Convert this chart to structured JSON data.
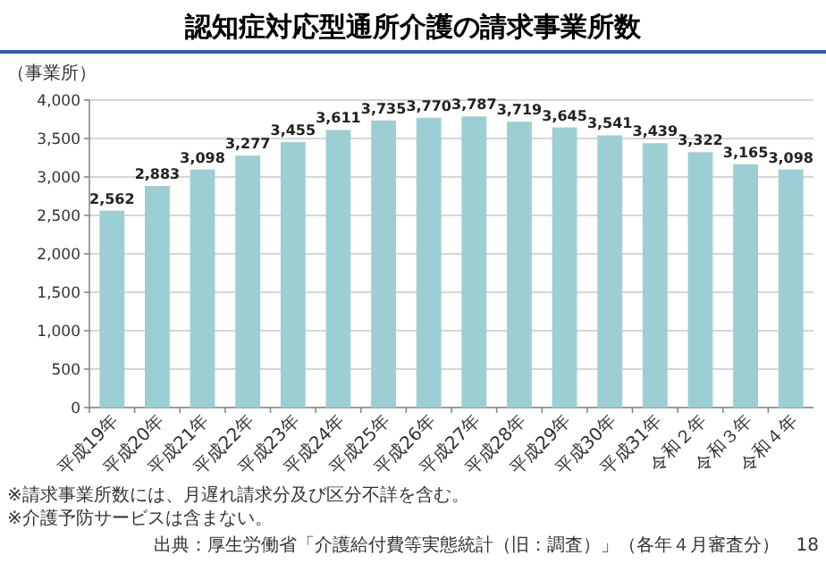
{
  "chart_data": {
    "type": "bar",
    "title": "認知症対応型通所介護の請求事業所数",
    "ylabel": "（事業所）",
    "categories": [
      "平成19年",
      "平成20年",
      "平成21年",
      "平成22年",
      "平成23年",
      "平成24年",
      "平成25年",
      "平成26年",
      "平成27年",
      "平成28年",
      "平成29年",
      "平成30年",
      "平成31年",
      "令和２年",
      "令和３年",
      "令和４年"
    ],
    "values": [
      2562,
      2883,
      3098,
      3277,
      3455,
      3611,
      3735,
      3770,
      3787,
      3719,
      3645,
      3541,
      3439,
      3322,
      3165,
      3098
    ],
    "value_labels": [
      "2,562",
      "2,883",
      "3,098",
      "3,277",
      "3,455",
      "3,611",
      "3,735",
      "3,770",
      "3,787",
      "3,719",
      "3,645",
      "3,541",
      "3,439",
      "3,322",
      "3,165",
      "3,098"
    ],
    "color": "#9bcfd4",
    "ylim": [
      0,
      4000
    ],
    "yticks": [
      {
        "value": 0,
        "label": "0"
      },
      {
        "value": 500,
        "label": "500"
      },
      {
        "value": 1000,
        "label": "1,000"
      },
      {
        "value": 1500,
        "label": "1,500"
      },
      {
        "value": 2000,
        "label": "2,000"
      },
      {
        "value": 2500,
        "label": "2,500"
      },
      {
        "value": 3000,
        "label": "3,000"
      },
      {
        "value": 3500,
        "label": "3,500"
      },
      {
        "value": 4000,
        "label": "4,000"
      }
    ],
    "grid": "y",
    "annotations": [
      "※請求事業所数には、月遅れ請求分及び区分不詳を含む。",
      "※介護予防サービスは含まない。",
      "出典：厚生労働省「介護給付費等実態統計（旧：調査）」（各年４月審査分）",
      "18"
    ]
  }
}
